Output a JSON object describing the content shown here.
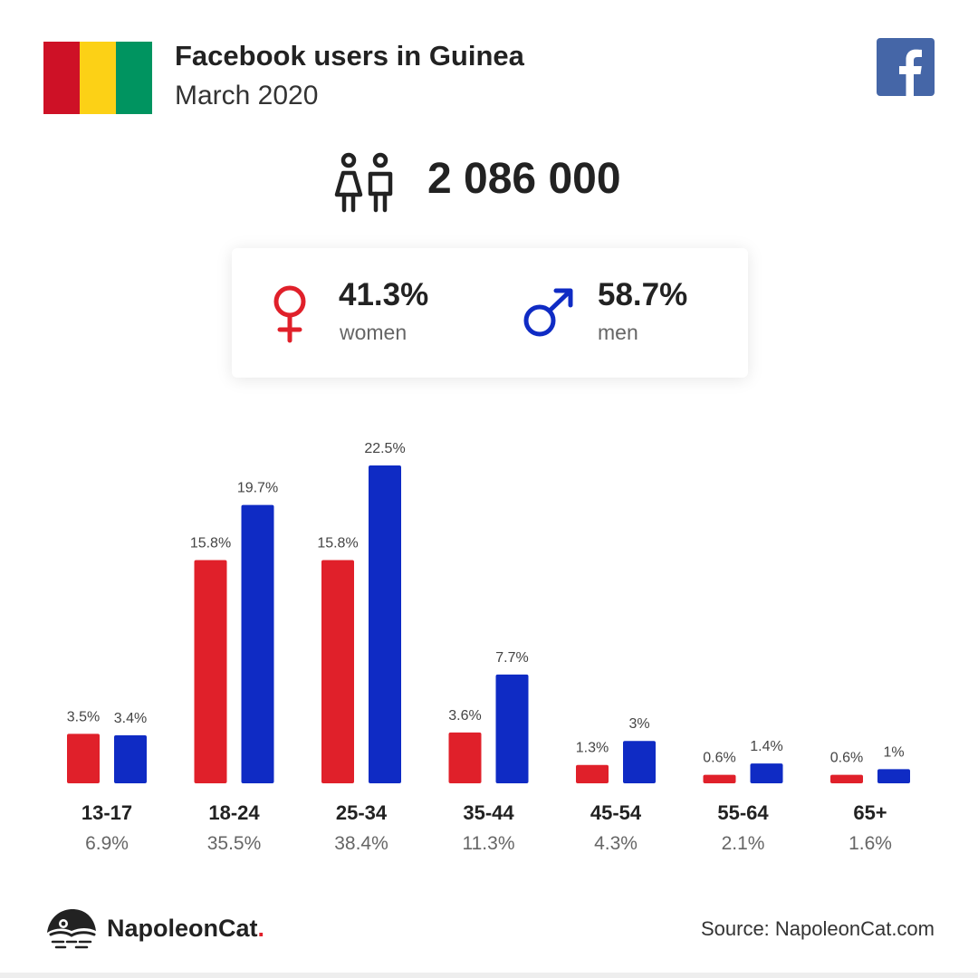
{
  "header": {
    "title": "Facebook users in Guinea",
    "subtitle": "March 2020",
    "flag_colors": [
      "#ce1126",
      "#fcd116",
      "#009460"
    ],
    "facebook_icon": "facebook-logo-icon",
    "facebook_color": "#4566a7"
  },
  "total": {
    "value": "2 086 000",
    "icon": "people-icon"
  },
  "gender": {
    "women": {
      "pct": "41.3%",
      "label": "women",
      "icon": "female-symbol-icon",
      "color": "#e0202a"
    },
    "men": {
      "pct": "58.7%",
      "label": "men",
      "icon": "male-symbol-icon",
      "color": "#0f2bc4"
    }
  },
  "chart_data": {
    "type": "bar",
    "categories": [
      "13-17",
      "18-24",
      "25-34",
      "35-44",
      "45-54",
      "55-64",
      "65+"
    ],
    "category_totals": [
      "6.9%",
      "35.5%",
      "38.4%",
      "11.3%",
      "4.3%",
      "2.1%",
      "1.6%"
    ],
    "series": [
      {
        "color": "#e0202a",
        "values": [
          3.5,
          15.8,
          15.8,
          3.6,
          1.3,
          0.6,
          0.6
        ],
        "labels": [
          "3.5%",
          "15.8%",
          "15.8%",
          "3.6%",
          "1.3%",
          "0.6%",
          "0.6%"
        ]
      },
      {
        "color": "#0f2bc4",
        "values": [
          3.4,
          19.7,
          22.5,
          7.7,
          3.0,
          1.4,
          1.0
        ],
        "labels": [
          "3.4%",
          "19.7%",
          "22.5%",
          "7.7%",
          "3%",
          "1.4%",
          "1%"
        ]
      }
    ],
    "ylim": [
      0,
      22.5
    ],
    "grid": false,
    "legend": "none"
  },
  "footer": {
    "brand_name": "NapoleonCat",
    "brand_dot": ".",
    "brand_icon": "napoleoncat-logo-icon",
    "source": "Source: NapoleonCat.com"
  }
}
